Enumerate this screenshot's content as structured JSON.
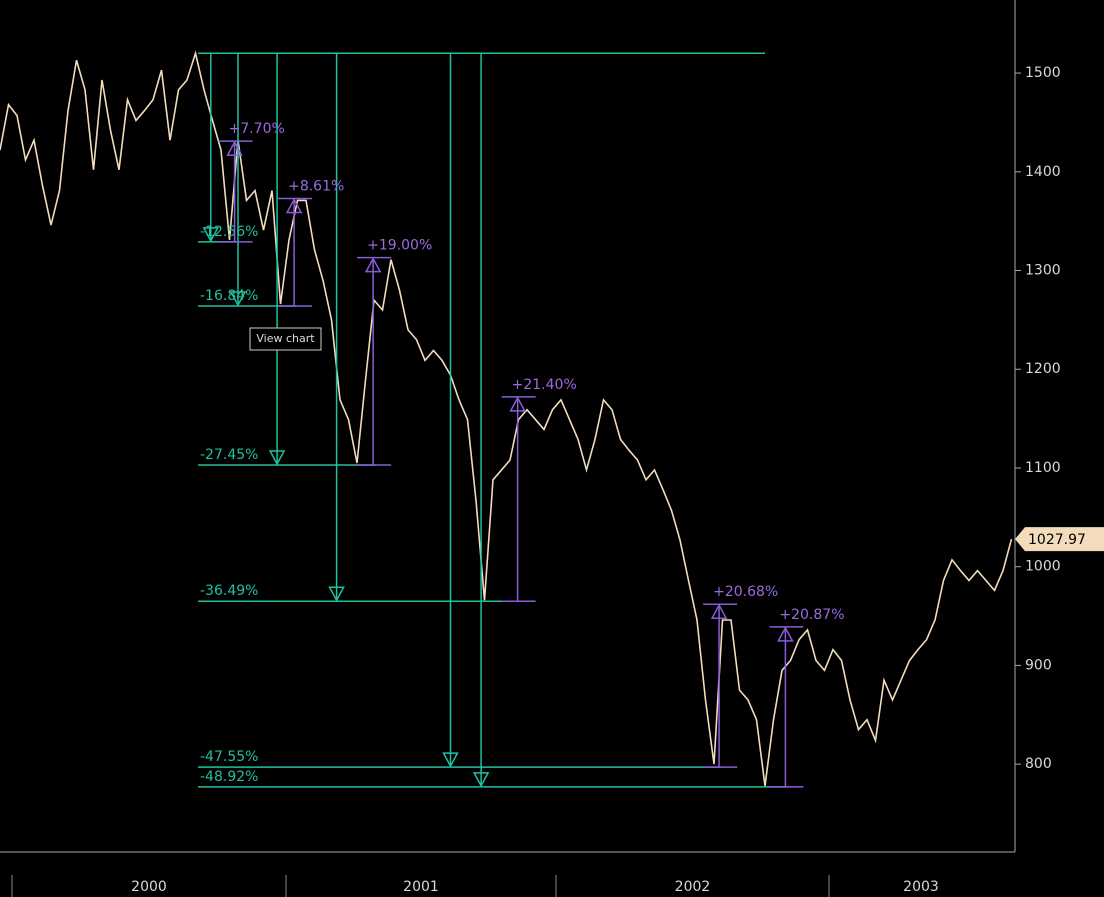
{
  "chart_data": {
    "type": "line",
    "series": [
      {
        "color": "#f2dcbc",
        "values": [
          1422,
          1468,
          1457,
          1412,
          1432,
          1386,
          1346,
          1381,
          1462,
          1513,
          1483,
          1402,
          1493,
          1442,
          1402,
          1473,
          1452,
          1462,
          1473,
          1503,
          1432,
          1483,
          1493,
          1520,
          1483,
          1452,
          1422,
          1331,
          1432,
          1371,
          1381,
          1341,
          1381,
          1266,
          1331,
          1371,
          1371,
          1321,
          1290,
          1250,
          1169,
          1149,
          1105,
          1189,
          1270,
          1260,
          1311,
          1280,
          1240,
          1230,
          1209,
          1219,
          1209,
          1194,
          1169,
          1149,
          1067,
          966,
          1088,
          1098,
          1108,
          1149,
          1159,
          1149,
          1139,
          1159,
          1169,
          1149,
          1129,
          1098,
          1129,
          1169,
          1159,
          1129,
          1118,
          1108,
          1088,
          1098,
          1078,
          1057,
          1027,
          986,
          946,
          865,
          800,
          946,
          946,
          875,
          865,
          845,
          778,
          845,
          895,
          905,
          926,
          936,
          905,
          895,
          916,
          905,
          865,
          835,
          845,
          824,
          885,
          865,
          885,
          905,
          916,
          926,
          946,
          986,
          1007,
          996,
          986,
          996,
          986,
          976,
          996,
          1027.97
        ]
      }
    ],
    "ylim": [
      711,
      1574
    ],
    "yticks": [
      800,
      900,
      1000,
      1100,
      1200,
      1300,
      1400,
      1500
    ],
    "x_labels": [
      "2000",
      "2001",
      "2002",
      "2003"
    ],
    "peak_level": 1520,
    "drawdown_color": "#20c0a0",
    "rally_color": "#8a5cd8",
    "drawdowns": [
      {
        "label": "-12.56%",
        "x": 24.8,
        "level": 1329
      },
      {
        "label": "-16.84%",
        "x": 28,
        "level": 1264
      },
      {
        "label": "-27.45%",
        "x": 32.6,
        "level": 1103
      },
      {
        "label": "-36.49%",
        "x": 39.6,
        "level": 965
      },
      {
        "label": "-47.55%",
        "x": 53,
        "level": 797
      },
      {
        "label": "-48.92%",
        "x": 56.6,
        "level": 777
      }
    ],
    "rallies": [
      {
        "label": "+7.70%",
        "x": 27.6,
        "from": 1329,
        "to": 1431
      },
      {
        "label": "+8.61%",
        "x": 34.6,
        "from": 1264,
        "to": 1373
      },
      {
        "label": "+19.00%",
        "x": 43.9,
        "from": 1103,
        "to": 1313
      },
      {
        "label": "+21.40%",
        "x": 60.9,
        "from": 965,
        "to": 1172
      },
      {
        "label": "+20.68%",
        "x": 84.6,
        "from": 797,
        "to": 962
      },
      {
        "label": "+20.87%",
        "x": 92.4,
        "from": 777,
        "to": 939
      }
    ],
    "tooltip": "View chart"
  }
}
